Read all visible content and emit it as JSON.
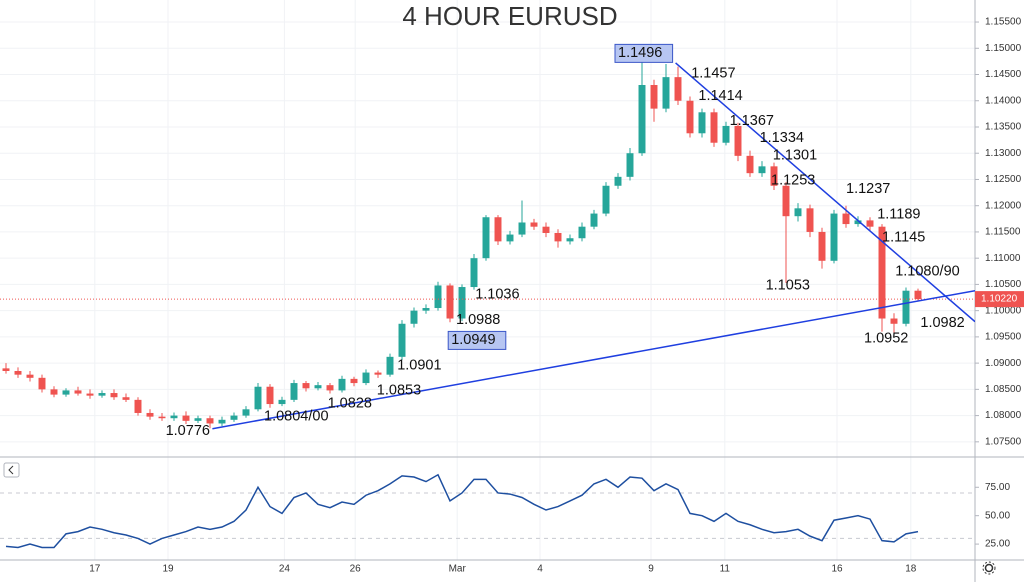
{
  "chart_data": {
    "type": "candlestick",
    "title": "4 HOUR EURUSD",
    "title_color": "#e53935",
    "up_color": "#26a69a",
    "down_color": "#ef5350",
    "grid": true,
    "xlim": [
      -0.5,
      80.75
    ],
    "ylim": [
      1.0723,
      1.1592
    ],
    "xticks": [
      {
        "value": 7.4,
        "label": "17"
      },
      {
        "value": 13.5,
        "label": "19"
      },
      {
        "value": 23.2,
        "label": "24"
      },
      {
        "value": 29.1,
        "label": "26"
      },
      {
        "value": 37.6,
        "label": "Mar"
      },
      {
        "value": 44.5,
        "label": "4"
      },
      {
        "value": 53.75,
        "label": "9"
      },
      {
        "value": 59.9,
        "label": "11"
      },
      {
        "value": 69.25,
        "label": "16"
      },
      {
        "value": 75.4,
        "label": "18"
      }
    ],
    "yticks": [
      {
        "value": 1.075,
        "label": "1.07500"
      },
      {
        "value": 1.08,
        "label": "1.08000"
      },
      {
        "value": 1.085,
        "label": "1.08500"
      },
      {
        "value": 1.09,
        "label": "1.09000"
      },
      {
        "value": 1.095,
        "label": "1.09500"
      },
      {
        "value": 1.1,
        "label": "1.10000"
      },
      {
        "value": 1.105,
        "label": "1.10500"
      },
      {
        "value": 1.11,
        "label": "1.11000"
      },
      {
        "value": 1.115,
        "label": "1.11500"
      },
      {
        "value": 1.12,
        "label": "1.12000"
      },
      {
        "value": 1.125,
        "label": "1.12500"
      },
      {
        "value": 1.13,
        "label": "1.13000"
      },
      {
        "value": 1.135,
        "label": "1.13500"
      },
      {
        "value": 1.14,
        "label": "1.14000"
      },
      {
        "value": 1.145,
        "label": "1.14500"
      },
      {
        "value": 1.15,
        "label": "1.15000"
      },
      {
        "value": 1.155,
        "label": "1.15500"
      }
    ],
    "open": [
      1.089,
      1.0885,
      1.0878,
      1.0872,
      1.085,
      1.084,
      1.0848,
      1.0842,
      1.0838,
      1.0843,
      1.0835,
      1.083,
      1.0805,
      1.0798,
      1.0795,
      1.08,
      1.079,
      1.0795,
      1.0785,
      1.0792,
      1.08,
      1.0812,
      1.0855,
      1.0822,
      1.083,
      1.0862,
      1.0852,
      1.0858,
      1.0848,
      1.087,
      1.0862,
      1.0882,
      1.0878,
      1.0912,
      1.0975,
      1.1,
      1.1005,
      1.1048,
      1.0985,
      1.1045,
      1.11,
      1.1178,
      1.1132,
      1.1145,
      1.1168,
      1.116,
      1.1148,
      1.1132,
      1.1138,
      1.116,
      1.1185,
      1.1238,
      1.1255,
      1.13,
      1.143,
      1.1385,
      1.1445,
      1.14,
      1.1338,
      1.1378,
      1.132,
      1.1352,
      1.1295,
      1.1262,
      1.1275,
      1.1238,
      1.118,
      1.1195,
      1.115,
      1.1095,
      1.1185,
      1.1165,
      1.1172,
      1.116,
      1.0985,
      1.0975,
      1.1038
    ],
    "high": [
      1.09,
      1.0892,
      1.0885,
      1.0878,
      1.0856,
      1.0852,
      1.0855,
      1.085,
      1.0848,
      1.085,
      1.0842,
      1.0835,
      1.0812,
      1.0805,
      1.0806,
      1.0808,
      1.08,
      1.08,
      1.0798,
      1.0806,
      1.0818,
      1.0862,
      1.086,
      1.0836,
      1.0868,
      1.0866,
      1.0864,
      1.0862,
      1.0876,
      1.0874,
      1.0888,
      1.0886,
      1.0918,
      1.0982,
      1.1006,
      1.1012,
      1.1055,
      1.1052,
      1.105,
      1.1108,
      1.1182,
      1.1182,
      1.1152,
      1.121,
      1.1175,
      1.1168,
      1.1155,
      1.1145,
      1.1168,
      1.1192,
      1.1245,
      1.1262,
      1.131,
      1.1496,
      1.144,
      1.147,
      1.1465,
      1.1408,
      1.1385,
      1.1385,
      1.136,
      1.1358,
      1.1305,
      1.1285,
      1.1282,
      1.1245,
      1.1205,
      1.1202,
      1.1158,
      1.1192,
      1.12,
      1.118,
      1.1178,
      1.1165,
      1.0995,
      1.1044,
      1.1042
    ],
    "low": [
      1.088,
      1.0872,
      1.0865,
      1.0844,
      1.0835,
      1.0836,
      1.0838,
      1.0832,
      1.0834,
      1.083,
      1.0826,
      1.08,
      1.0792,
      1.079,
      1.079,
      1.0784,
      1.0786,
      1.0776,
      1.078,
      1.0788,
      1.0796,
      1.0808,
      1.0815,
      1.0818,
      1.0826,
      1.0846,
      1.0848,
      1.0842,
      1.0844,
      1.0856,
      1.0858,
      1.0872,
      1.0874,
      1.0906,
      1.0968,
      1.0994,
      1.1,
      1.0978,
      1.098,
      1.104,
      1.1095,
      1.1125,
      1.1126,
      1.114,
      1.1154,
      1.114,
      1.112,
      1.1126,
      1.1132,
      1.1155,
      1.118,
      1.1232,
      1.1248,
      1.1295,
      1.136,
      1.1378,
      1.1392,
      1.133,
      1.133,
      1.1312,
      1.1315,
      1.1285,
      1.1255,
      1.1255,
      1.123,
      1.1053,
      1.117,
      1.114,
      1.108,
      1.109,
      1.1158,
      1.116,
      1.1152,
      1.096,
      1.0952,
      1.097,
      1.1018
    ],
    "close": [
      1.0885,
      1.0878,
      1.0872,
      1.085,
      1.084,
      1.0848,
      1.0842,
      1.0838,
      1.0843,
      1.0835,
      1.083,
      1.0805,
      1.0798,
      1.0795,
      1.08,
      1.079,
      1.0795,
      1.0785,
      1.0792,
      1.08,
      1.0812,
      1.0855,
      1.0822,
      1.083,
      1.0862,
      1.0852,
      1.0858,
      1.0848,
      1.087,
      1.0862,
      1.0882,
      1.0878,
      1.0912,
      1.0975,
      1.1,
      1.1005,
      1.1048,
      1.0985,
      1.1045,
      1.11,
      1.1178,
      1.1132,
      1.1145,
      1.1168,
      1.116,
      1.1148,
      1.1132,
      1.1138,
      1.116,
      1.1185,
      1.1238,
      1.1255,
      1.13,
      1.143,
      1.1385,
      1.1445,
      1.14,
      1.1338,
      1.1378,
      1.132,
      1.1352,
      1.1295,
      1.1262,
      1.1275,
      1.1238,
      1.118,
      1.1195,
      1.115,
      1.1095,
      1.1185,
      1.1165,
      1.1172,
      1.116,
      1.0985,
      1.0975,
      1.1038,
      1.1022
    ],
    "last_price": {
      "value": 1.1022,
      "label": "1.10220"
    },
    "trendlines": [
      {
        "x": [
          17.2,
          80.75
        ],
        "y": [
          1.0775,
          1.1038
        ],
        "color": "#1f3fe0"
      },
      {
        "x": [
          55.8,
          80.75
        ],
        "y": [
          1.1472,
          1.0979
        ],
        "color": "#1f3fe0"
      }
    ],
    "annotations": [
      {
        "label": "1.1496",
        "value": 1.1496,
        "x": 51,
        "boxed": true
      },
      {
        "label": "1.1457",
        "value": 1.1457,
        "x": 57.1
      },
      {
        "label": "1.1414",
        "value": 1.1414,
        "x": 57.7
      },
      {
        "label": "1.1367",
        "value": 1.1367,
        "x": 60.3
      },
      {
        "label": "1.1334",
        "value": 1.1334,
        "x": 62.8
      },
      {
        "label": "1.1301",
        "value": 1.1301,
        "x": 63.9
      },
      {
        "label": "1.1253",
        "value": 1.1253,
        "x": 63.75
      },
      {
        "label": "1.1237",
        "value": 1.1237,
        "x": 70
      },
      {
        "label": "1.1189",
        "value": 1.1189,
        "x": 72.6
      },
      {
        "label": "1.1145",
        "value": 1.1145,
        "x": 73
      },
      {
        "label": "1.1080/90",
        "value": 1.108,
        "x": 74.1
      },
      {
        "label": "1.0982",
        "value": 1.0982,
        "x": 76.2
      },
      {
        "label": "1.0952",
        "value": 1.0952,
        "x": 71.5
      },
      {
        "label": "1.1053",
        "value": 1.1053,
        "x": 63.3
      },
      {
        "label": "1.1036",
        "value": 1.1036,
        "x": 39.1
      },
      {
        "label": "1.0988",
        "value": 1.0988,
        "x": 37.5
      },
      {
        "label": "1.0949",
        "value": 1.0949,
        "x": 37.1,
        "boxed": true
      },
      {
        "label": "1.0901",
        "value": 1.0901,
        "x": 32.6
      },
      {
        "label": "1.0853",
        "value": 1.0853,
        "x": 30.9
      },
      {
        "label": "1.0828",
        "value": 1.0828,
        "x": 26.8
      },
      {
        "label": "1.0804/00",
        "value": 1.0804,
        "x": 21.5
      },
      {
        "label": "1.0776",
        "value": 1.0776,
        "x": 13.3
      }
    ],
    "rsi": {
      "color": "#1e4fa0",
      "ylim": [
        11,
        99
      ],
      "levels": [
        70,
        30
      ],
      "yticks": [
        {
          "value": 25,
          "label": "25.00"
        },
        {
          "value": 50,
          "label": "50.00"
        },
        {
          "value": 75,
          "label": "75.00"
        }
      ],
      "values": [
        23,
        22,
        25,
        22,
        22,
        34,
        36,
        40,
        38,
        35,
        33,
        30,
        25,
        30,
        33,
        36,
        40,
        38,
        40,
        45,
        55,
        75,
        58,
        52,
        66,
        70,
        60,
        57,
        62,
        60,
        68,
        72,
        78,
        85,
        84,
        80,
        86,
        63,
        70,
        82,
        82,
        70,
        69,
        66,
        60,
        55,
        58,
        63,
        68,
        78,
        82,
        75,
        84,
        83,
        72,
        78,
        73,
        52,
        50,
        45,
        52,
        45,
        42,
        38,
        35,
        36,
        38,
        32,
        28,
        46,
        48,
        50,
        47,
        28,
        27,
        34,
        36
      ]
    }
  }
}
